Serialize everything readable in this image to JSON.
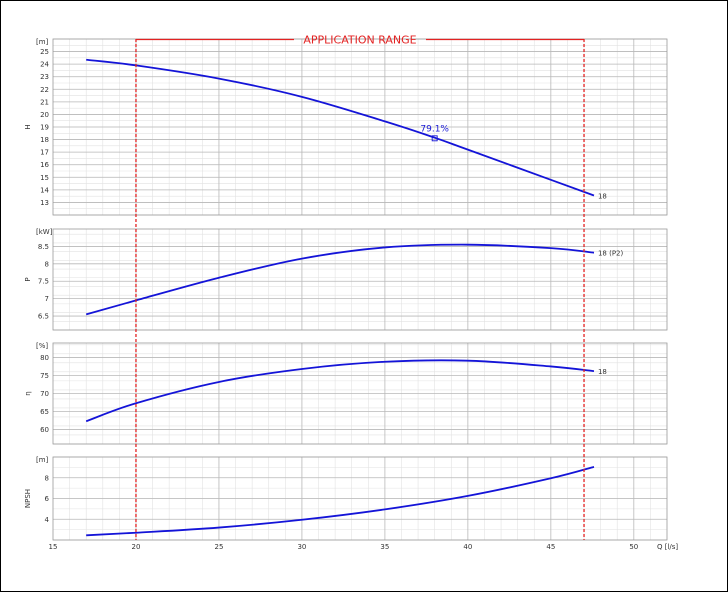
{
  "colors": {
    "curve": "#1414d8",
    "range": "#e32222",
    "grid_major": "#b8b8b8",
    "grid_minor": "#e2e2e2",
    "frame": "#999999"
  },
  "chart_data": [
    {
      "type": "line",
      "panel": "head",
      "ylabel": "H",
      "unit": "[m]",
      "ylim": [
        12,
        26
      ],
      "yticks": [
        13,
        14,
        15,
        16,
        17,
        18,
        19,
        20,
        21,
        22,
        23,
        24,
        25
      ],
      "series": [
        {
          "name": "18",
          "x": [
            17,
            20,
            25,
            30,
            35,
            38,
            40,
            45,
            47.6
          ],
          "y": [
            24.35,
            23.9,
            22.85,
            21.4,
            19.45,
            18.15,
            17.2,
            14.8,
            13.55
          ]
        }
      ],
      "annotations": [
        {
          "text": "79.1%",
          "x": 38,
          "y": 18.1
        }
      ]
    },
    {
      "type": "line",
      "panel": "power",
      "ylabel": "P",
      "unit": "[kW]",
      "ylim": [
        6.1,
        9.0
      ],
      "yticks": [
        6.5,
        7,
        7.5,
        8,
        8.5
      ],
      "ytick_labels": [
        "6.5",
        "7",
        "7.5",
        "8",
        "8.5"
      ],
      "series": [
        {
          "name": "18 (P2)",
          "x": [
            17,
            20,
            25,
            30,
            35,
            40,
            45,
            47.6
          ],
          "y": [
            6.55,
            6.95,
            7.6,
            8.15,
            8.47,
            8.55,
            8.45,
            8.32
          ]
        }
      ]
    },
    {
      "type": "line",
      "panel": "efficiency",
      "ylabel": "η",
      "unit": "[%]",
      "ylim": [
        56,
        84
      ],
      "yticks": [
        60,
        65,
        70,
        75,
        80
      ],
      "series": [
        {
          "name": "18",
          "x": [
            17,
            20,
            25,
            30,
            35,
            40,
            45,
            47.6
          ],
          "y": [
            62.3,
            67.3,
            73.2,
            76.8,
            78.8,
            79.1,
            77.5,
            76.2
          ]
        }
      ]
    },
    {
      "type": "line",
      "panel": "npsh",
      "ylabel": "NPSH",
      "unit": "[m]",
      "ylim": [
        2,
        10
      ],
      "yticks": [
        4,
        6,
        8
      ],
      "series": [
        {
          "name": "",
          "x": [
            17,
            20,
            25,
            30,
            35,
            40,
            45,
            47.6
          ],
          "y": [
            2.45,
            2.7,
            3.2,
            3.95,
            4.95,
            6.25,
            7.95,
            9.05
          ]
        }
      ]
    }
  ],
  "x_axis": {
    "unit_label": "Q [l/s]",
    "xlim": [
      15,
      52
    ],
    "ticks": [
      15,
      20,
      25,
      30,
      35,
      40,
      45,
      50
    ]
  },
  "application_range": {
    "label": "APPLICATION RANGE",
    "x_min": 20,
    "x_max": 47
  }
}
